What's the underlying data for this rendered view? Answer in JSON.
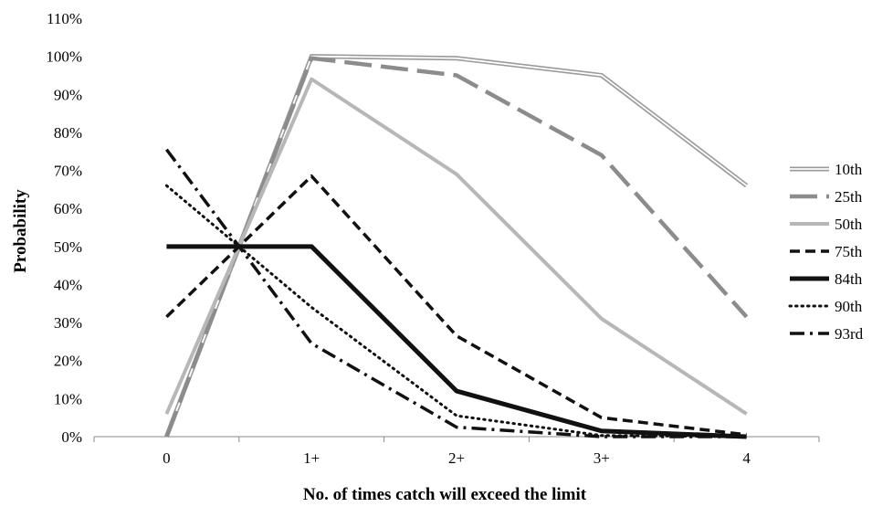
{
  "chart_data": {
    "type": "line",
    "title": "",
    "xlabel": "No. of times catch will exceed the limit",
    "ylabel": "Probability",
    "categories": [
      "0",
      "1+",
      "2+",
      "3+",
      "4"
    ],
    "ylim": [
      0,
      110
    ],
    "y_ticks": [
      "0%",
      "10%",
      "20%",
      "30%",
      "40%",
      "50%",
      "60%",
      "70%",
      "80%",
      "90%",
      "100%",
      "110%"
    ],
    "grid": false,
    "legend_position": "right",
    "note": "All series pass through approximately 50% midway between 0 and 1+",
    "series": [
      {
        "name": "10th",
        "values": [
          0,
          100,
          99.5,
          95,
          66
        ],
        "color": "#9a9a9a",
        "style": "double"
      },
      {
        "name": "25th",
        "values": [
          0,
          99.5,
          95,
          74,
          31.5
        ],
        "color": "#8c8c8c",
        "style": "longdash"
      },
      {
        "name": "50th",
        "values": [
          6,
          94,
          69,
          31,
          6
        ],
        "color": "#b7b7b7",
        "style": "solid"
      },
      {
        "name": "75th",
        "values": [
          31.5,
          68.5,
          26.5,
          5,
          0.5
        ],
        "color": "#111111",
        "style": "dash"
      },
      {
        "name": "84th",
        "values": [
          50,
          50,
          12,
          1.5,
          0
        ],
        "color": "#111111",
        "style": "thick"
      },
      {
        "name": "90th",
        "values": [
          66,
          34,
          5.5,
          0.3,
          0
        ],
        "color": "#111111",
        "style": "dot"
      },
      {
        "name": "93rd",
        "values": [
          75.5,
          24.5,
          2.5,
          0,
          0
        ],
        "color": "#111111",
        "style": "dashdot"
      }
    ]
  }
}
